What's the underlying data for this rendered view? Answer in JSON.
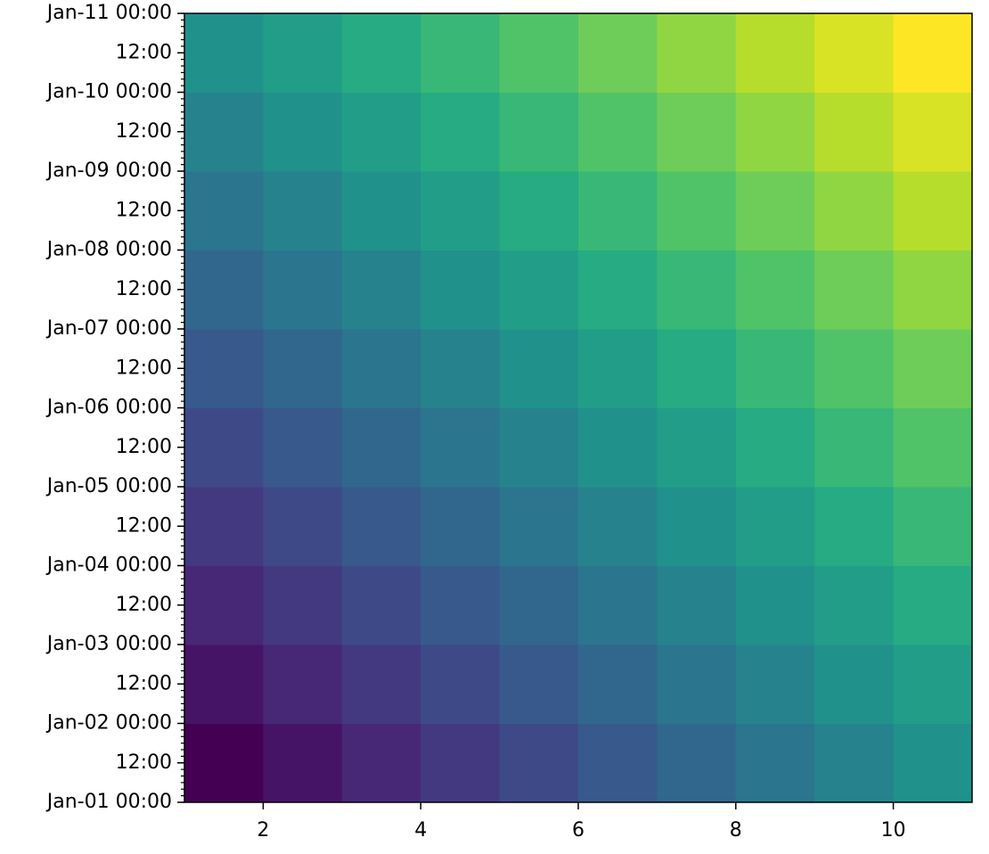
{
  "chart_data": {
    "type": "heatmap",
    "colormap": "viridis",
    "x": [
      1,
      2,
      3,
      4,
      5,
      6,
      7,
      8,
      9,
      10,
      11
    ],
    "y": [
      "Jan-01 00:00",
      "Jan-02 00:00",
      "Jan-03 00:00",
      "Jan-04 00:00",
      "Jan-05 00:00",
      "Jan-06 00:00",
      "Jan-07 00:00",
      "Jan-08 00:00",
      "Jan-09 00:00",
      "Jan-10 00:00",
      "Jan-11 00:00"
    ],
    "values": [
      [
        0,
        1,
        2,
        3,
        4,
        5,
        6,
        7,
        8,
        9
      ],
      [
        1,
        2,
        3,
        4,
        5,
        6,
        7,
        8,
        9,
        10
      ],
      [
        2,
        3,
        4,
        5,
        6,
        7,
        8,
        9,
        10,
        11
      ],
      [
        3,
        4,
        5,
        6,
        7,
        8,
        9,
        10,
        11,
        12
      ],
      [
        4,
        5,
        6,
        7,
        8,
        9,
        10,
        11,
        12,
        13
      ],
      [
        5,
        6,
        7,
        8,
        9,
        10,
        11,
        12,
        13,
        14
      ],
      [
        6,
        7,
        8,
        9,
        10,
        11,
        12,
        13,
        14,
        15
      ],
      [
        7,
        8,
        9,
        10,
        11,
        12,
        13,
        14,
        15,
        16
      ],
      [
        8,
        9,
        10,
        11,
        12,
        13,
        14,
        15,
        16,
        17
      ],
      [
        9,
        10,
        11,
        12,
        13,
        14,
        15,
        16,
        17,
        18
      ]
    ],
    "xlim": [
      1,
      11
    ],
    "xticks": [
      2,
      4,
      6,
      8,
      10
    ],
    "ylim": [
      "Jan-01 00:00",
      "Jan-11 00:00"
    ],
    "yticks": [
      {
        "value": "Jan-01 00:00",
        "label": "Jan-01 00:00"
      },
      {
        "value": "Jan-01 12:00",
        "label": "12:00"
      },
      {
        "value": "Jan-02 00:00",
        "label": "Jan-02 00:00"
      },
      {
        "value": "Jan-02 12:00",
        "label": "12:00"
      },
      {
        "value": "Jan-03 00:00",
        "label": "Jan-03 00:00"
      },
      {
        "value": "Jan-03 12:00",
        "label": "12:00"
      },
      {
        "value": "Jan-04 00:00",
        "label": "Jan-04 00:00"
      },
      {
        "value": "Jan-04 12:00",
        "label": "12:00"
      },
      {
        "value": "Jan-05 00:00",
        "label": "Jan-05 00:00"
      },
      {
        "value": "Jan-05 12:00",
        "label": "12:00"
      },
      {
        "value": "Jan-06 00:00",
        "label": "Jan-06 00:00"
      },
      {
        "value": "Jan-06 12:00",
        "label": "12:00"
      },
      {
        "value": "Jan-07 00:00",
        "label": "Jan-07 00:00"
      },
      {
        "value": "Jan-07 12:00",
        "label": "12:00"
      },
      {
        "value": "Jan-08 00:00",
        "label": "Jan-08 00:00"
      },
      {
        "value": "Jan-08 12:00",
        "label": "12:00"
      },
      {
        "value": "Jan-09 00:00",
        "label": "Jan-09 00:00"
      },
      {
        "value": "Jan-09 12:00",
        "label": "12:00"
      },
      {
        "value": "Jan-10 00:00",
        "label": "Jan-10 00:00"
      },
      {
        "value": "Jan-10 12:00",
        "label": "12:00"
      },
      {
        "value": "Jan-11 00:00",
        "label": "Jan-11 00:00"
      }
    ],
    "y_minor_hours": 2
  }
}
